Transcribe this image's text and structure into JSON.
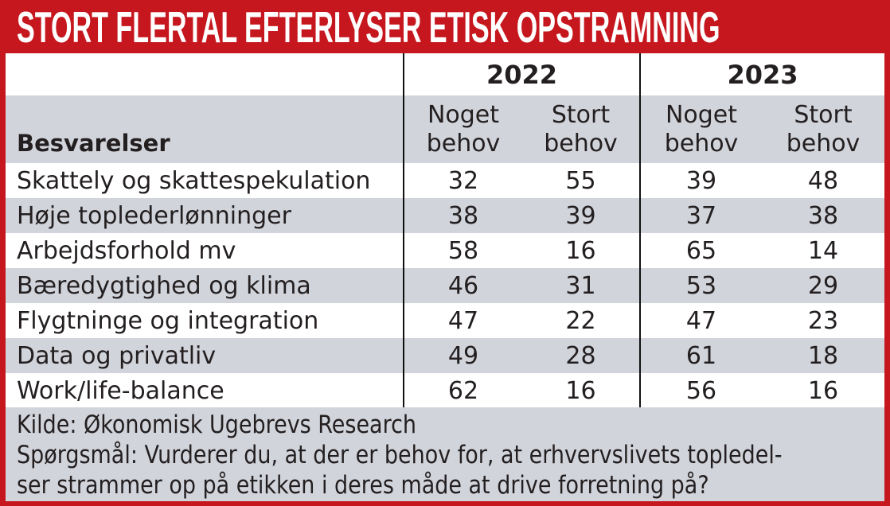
{
  "banner": {
    "title": "STORT FLERTAL EFTERLYSER ETISK OPSTRAMNING"
  },
  "table": {
    "corner_label": "Besvarelser",
    "year_headers": [
      "2022",
      "2023"
    ],
    "sub_headers": [
      "Noget\nbehov",
      "Stort\nbehov",
      "Noget\nbehov",
      "Stort\nbehov"
    ],
    "rows": [
      {
        "label": "Skattely og skattespekulation",
        "values": [
          "32",
          "55",
          "39",
          "48"
        ]
      },
      {
        "label": "Høje toplederlønninger",
        "values": [
          "38",
          "39",
          "37",
          "38"
        ]
      },
      {
        "label": "Arbejdsforhold mv",
        "values": [
          "58",
          "16",
          "65",
          "14"
        ]
      },
      {
        "label": "Bæredygtighed og klima",
        "values": [
          "46",
          "31",
          "53",
          "29"
        ]
      },
      {
        "label": "Flygtninge og integration",
        "values": [
          "47",
          "22",
          "47",
          "23"
        ]
      },
      {
        "label": "Data og privatliv",
        "values": [
          "49",
          "28",
          "61",
          "18"
        ]
      },
      {
        "label": "Work/life-balance",
        "values": [
          "62",
          "16",
          "56",
          "16"
        ]
      }
    ]
  },
  "footer": {
    "lines": [
      "Kilde: Økonomisk Ugebrevs Research",
      "Spørgsmål: Vurderer du, at der er behov for, at erhvervslivets topledel-",
      "ser strammer op på etikken i deres måde at drive forretning på?"
    ]
  },
  "colors": {
    "accent_red": "#c6171e",
    "row_gray": "#d2d4db",
    "text_dark": "#231f20",
    "title_white": "#ffffff"
  },
  "chart_data": {
    "type": "table",
    "title": "STORT FLERTAL EFTERLYSER ETISK OPSTRAMNING",
    "column_groups": [
      "2022",
      "2023"
    ],
    "columns": [
      "2022 Noget behov",
      "2022 Stort behov",
      "2023 Noget behov",
      "2023 Stort behov"
    ],
    "categories": [
      "Skattely og skattespekulation",
      "Høje toplederlønninger",
      "Arbejdsforhold mv",
      "Bæredygtighed og klima",
      "Flygtninge og integration",
      "Data og privatliv",
      "Work/life-balance"
    ],
    "series": [
      {
        "name": "2022 Noget behov",
        "values": [
          32,
          38,
          58,
          46,
          47,
          49,
          62
        ]
      },
      {
        "name": "2022 Stort behov",
        "values": [
          55,
          39,
          16,
          31,
          22,
          28,
          16
        ]
      },
      {
        "name": "2023 Noget behov",
        "values": [
          39,
          37,
          65,
          53,
          47,
          61,
          56
        ]
      },
      {
        "name": "2023 Stort behov",
        "values": [
          48,
          38,
          14,
          29,
          23,
          18,
          16
        ]
      }
    ],
    "source": "Kilde: Økonomisk Ugebrevs Research",
    "note": "Spørgsmål: Vurderer du, at der er behov for, at erhvervslivets topledelser strammer op på etikken i deres måde at drive forretning på?"
  }
}
